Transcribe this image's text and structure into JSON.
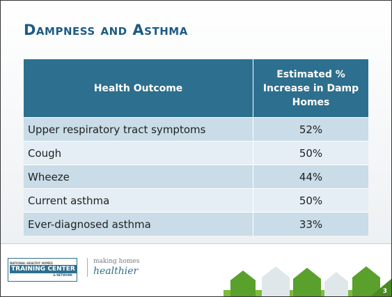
{
  "header": {
    "title": "Dampness and Asthma"
  },
  "table": {
    "columns": [
      "Health Outcome",
      "Estimated % Increase in Damp Homes"
    ],
    "rows": [
      [
        "Upper respiratory tract symptoms",
        "52%"
      ],
      [
        "Cough",
        "50%"
      ],
      [
        "Wheeze",
        "44%"
      ],
      [
        "Current asthma",
        "50%"
      ],
      [
        "Ever-diagnosed asthma",
        "33%"
      ]
    ]
  },
  "footer": {
    "logo_top": "NATIONAL HEALTHY HOMES",
    "logo_main": "TRAINING CENTER",
    "logo_sub": "& NETWORK",
    "tagline_1": "making homes",
    "tagline_2": "healthier",
    "page": "3"
  }
}
